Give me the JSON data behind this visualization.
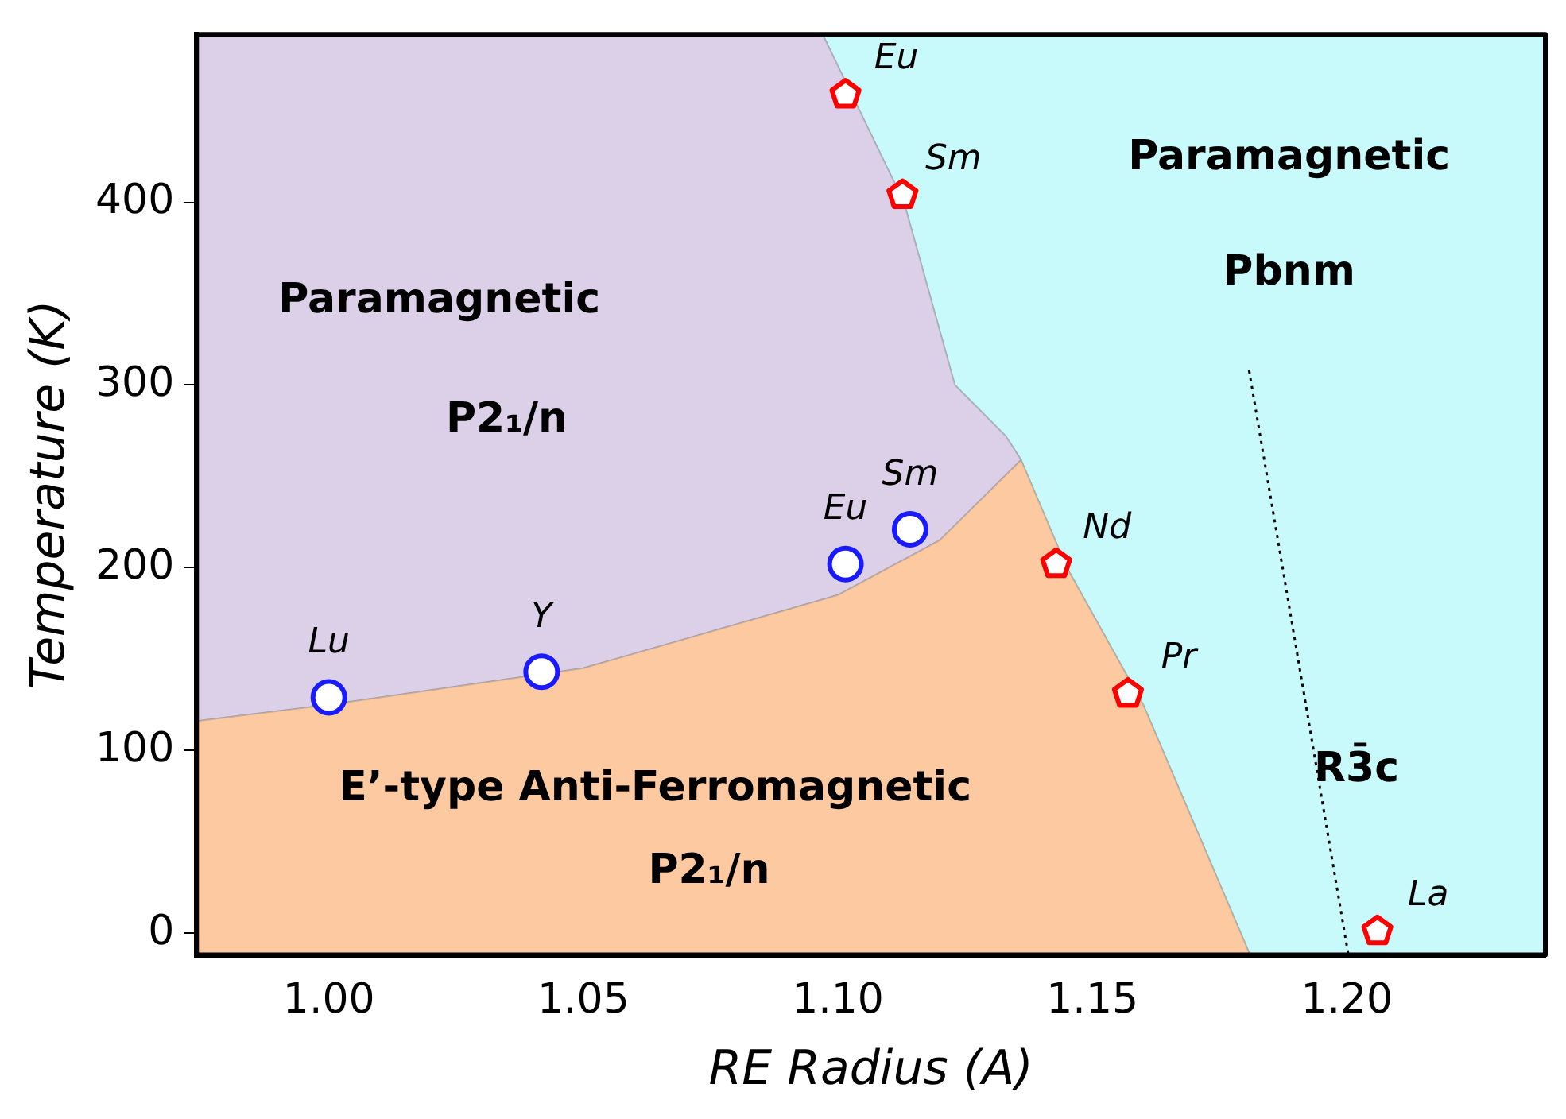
{
  "chart_data": {
    "type": "scatter",
    "xlabel": "RE Radius (A)",
    "ylabel": "Temperature (K)",
    "xlim": [
      0.974,
      1.239
    ],
    "ylim": [
      -12,
      492
    ],
    "xticks": [
      {
        "value": 1,
        "label": "1.00"
      },
      1.05,
      {
        "value": 1.1,
        "label": "1.10"
      },
      1.15,
      {
        "value": 1.2,
        "label": "1.20"
      }
    ],
    "yticks": [
      0,
      100,
      200,
      300,
      400
    ],
    "grid": false,
    "legend": false,
    "series": [
      {
        "type": "area",
        "color": "#c8fafc",
        "x": [
          1.097,
          1.113,
          1.123,
          1.133,
          1.136,
          1.145,
          1.16,
          1.181,
          1.239,
          1.239
        ],
        "values": [
          492,
          400,
          300,
          272,
          259,
          200,
          125,
          -12,
          -12,
          492
        ]
      },
      {
        "type": "area",
        "color": "#dccfe8",
        "x": [
          0.974,
          1.0,
          1.05,
          1.1,
          1.12,
          1.136,
          1.133,
          1.123,
          1.113,
          1.097,
          0.974
        ],
        "values": [
          116,
          125,
          145,
          185,
          215,
          259,
          272,
          300,
          400,
          492,
          492
        ]
      },
      {
        "type": "area",
        "color": "#fcc9a0",
        "x": [
          0.974,
          1.0,
          1.05,
          1.1,
          1.12,
          1.136,
          1.145,
          1.16,
          1.181,
          0.974
        ],
        "values": [
          116,
          125,
          145,
          185,
          215,
          259,
          200,
          125,
          -12,
          -12
        ]
      },
      {
        "type": "line",
        "color": "#000000",
        "line_style": "dotted",
        "marker": "none",
        "x": [
          1.1808,
          1.2003
        ],
        "values": [
          308,
          -12
        ]
      },
      {
        "type": "scatter",
        "color": "#1a1aff",
        "marker": "circle",
        "x": [
          1.0,
          1.0418,
          1.1015,
          1.1142
        ],
        "values": [
          129,
          143,
          202,
          221
        ],
        "value_labels": [
          "Lu",
          "Y",
          "Eu",
          "Sm"
        ]
      },
      {
        "type": "scatter",
        "color": "#ff0000",
        "x": [
          1.1015,
          1.1127,
          1.1429,
          1.157,
          1.206
        ],
        "values": [
          459,
          404,
          202,
          131,
          1
        ],
        "value_labels": [
          "Eu",
          "Sm",
          "Nd",
          "Pr",
          "La"
        ]
      }
    ],
    "annotations": [
      "Paramagnetic",
      "P2₁/n",
      "Paramagnetic",
      "Pbnm",
      "E’-type Anti-Ferromagnetic",
      "P2₁/n",
      "R3̄c"
    ]
  }
}
